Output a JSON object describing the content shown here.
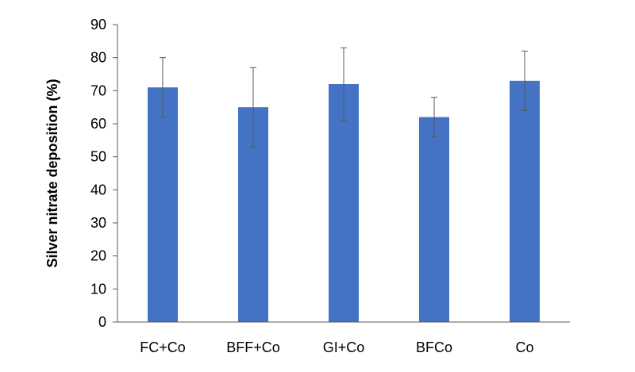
{
  "chart_data": {
    "type": "bar",
    "title": "",
    "xlabel": "",
    "ylabel": "Silver nitrate deposition (%)",
    "categories": [
      "FC+Co",
      "BFF+Co",
      "GI+Co",
      "BFCo",
      "Co"
    ],
    "values": [
      71,
      65,
      72,
      62,
      73
    ],
    "error_low": [
      62,
      53,
      61,
      56,
      64
    ],
    "error_high": [
      80,
      77,
      83,
      68,
      82
    ],
    "ylim": [
      0,
      90
    ],
    "yticks": [
      0,
      10,
      20,
      30,
      40,
      50,
      60,
      70,
      80,
      90
    ],
    "grid": false,
    "legend": "none",
    "bar_color": "#4472C4",
    "error_bar_color": "#595959"
  }
}
